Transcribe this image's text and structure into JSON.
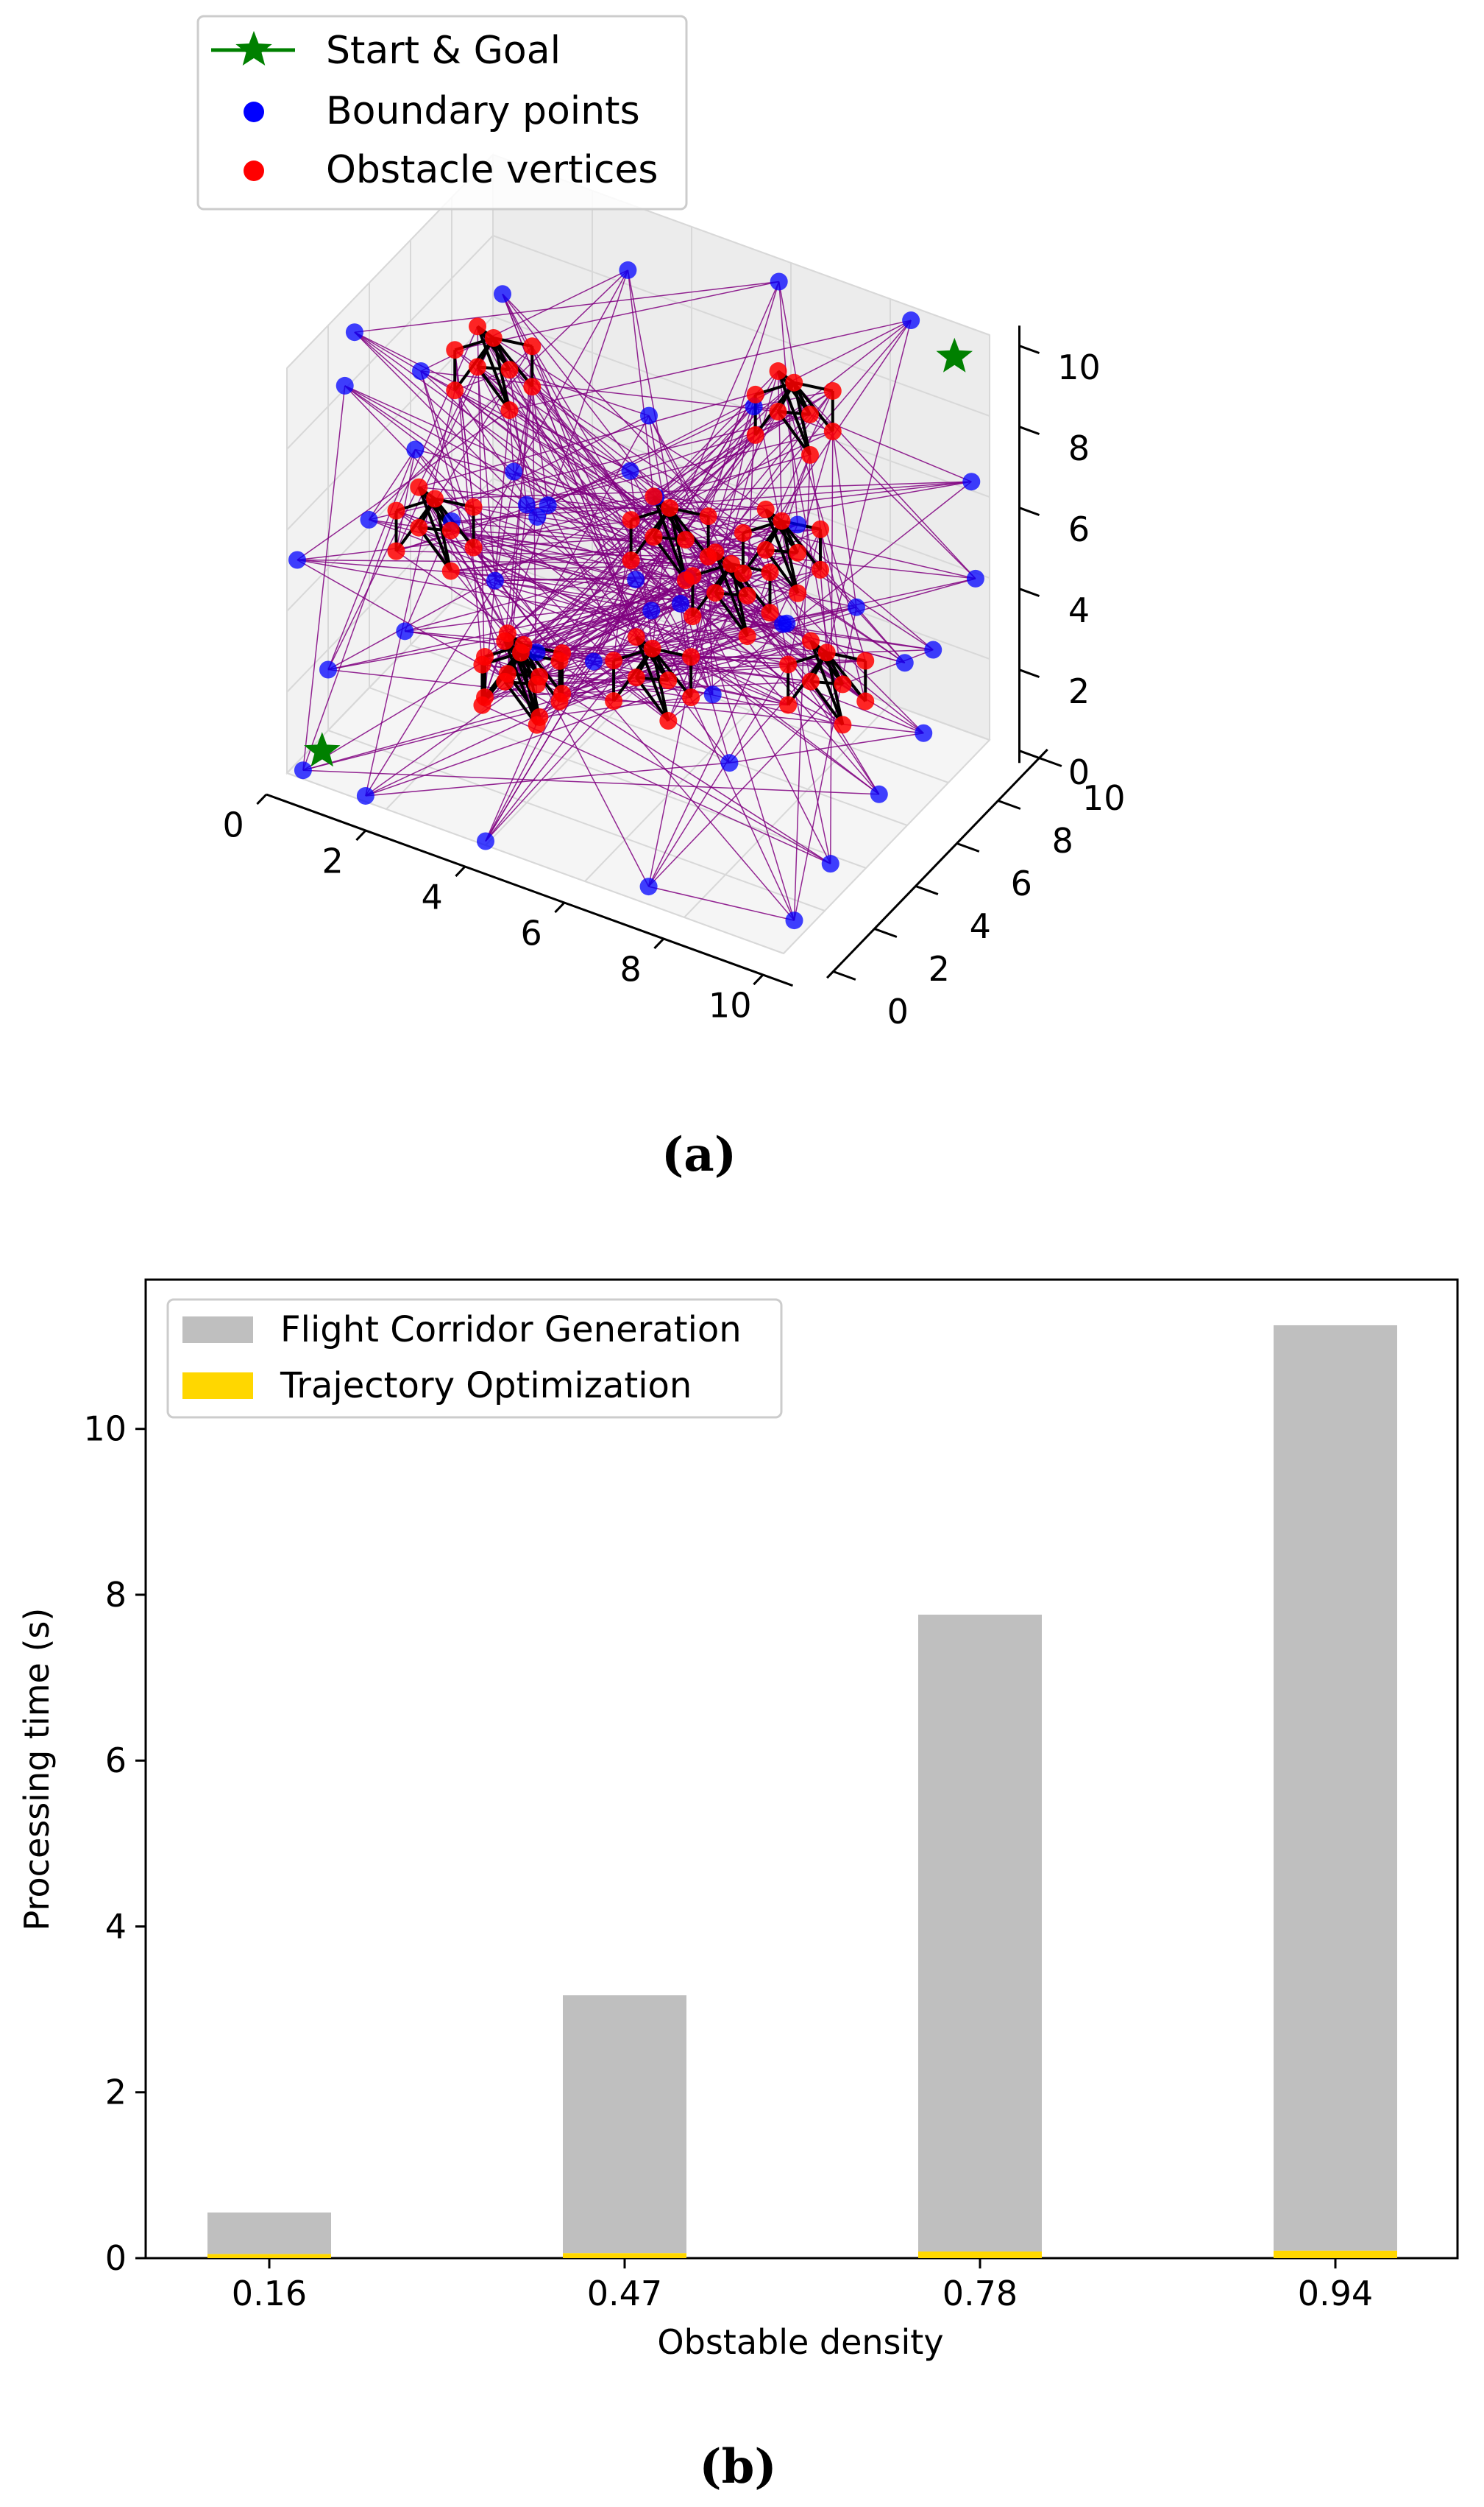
{
  "chart_data": [
    {
      "type": "scatter",
      "projection": "3d",
      "caption": "(a)",
      "xlim": [
        0,
        10
      ],
      "ylim": [
        0,
        10
      ],
      "zlim": [
        0,
        10
      ],
      "x_ticks": [
        "0",
        "2",
        "4",
        "6",
        "8",
        "10"
      ],
      "y_ticks": [
        "0",
        "2",
        "4",
        "6",
        "8",
        "10"
      ],
      "z_ticks": [
        "0",
        "2",
        "4",
        "6",
        "8",
        "10"
      ],
      "legend": {
        "placement": "upper-left",
        "entries": [
          {
            "label": "Start & Goal",
            "color": "#008000",
            "marker": "star-line"
          },
          {
            "label": "Boundary points",
            "color": "#0000ff",
            "marker": "dot"
          },
          {
            "label": "Obstacle vertices",
            "color": "#ff0000",
            "marker": "dot"
          }
        ]
      },
      "start_goal": [
        {
          "x": 0.5,
          "y": 0.5,
          "z": 0.5
        },
        {
          "x": 9.5,
          "y": 9.5,
          "z": 9.5
        }
      ],
      "boundary_points": [
        [
          0.2,
          0.3,
          0.0
        ],
        [
          1.5,
          0.2,
          0.0
        ],
        [
          4.0,
          0.0,
          0.1
        ],
        [
          7.2,
          0.2,
          0.3
        ],
        [
          9.8,
          1.0,
          0.2
        ],
        [
          9.7,
          3.0,
          0.5
        ],
        [
          9.6,
          5.6,
          0.8
        ],
        [
          9.5,
          8.0,
          1.0
        ],
        [
          0.0,
          2.0,
          1.5
        ],
        [
          0.3,
          5.0,
          1.0
        ],
        [
          0.0,
          8.0,
          2.0
        ],
        [
          0.5,
          9.8,
          2.5
        ],
        [
          3.0,
          9.7,
          1.0
        ],
        [
          6.0,
          9.8,
          1.2
        ],
        [
          8.5,
          9.5,
          1.5
        ],
        [
          9.8,
          9.8,
          4.0
        ],
        [
          0.0,
          0.5,
          5.0
        ],
        [
          0.2,
          3.5,
          4.5
        ],
        [
          0.0,
          6.5,
          6.5
        ],
        [
          0.4,
          9.5,
          7.0
        ],
        [
          2.8,
          9.8,
          8.5
        ],
        [
          5.8,
          9.9,
          9.5
        ],
        [
          8.5,
          9.8,
          9.8
        ],
        [
          9.8,
          9.6,
          6.5
        ],
        [
          9.9,
          7.5,
          3.5
        ],
        [
          9.6,
          4.5,
          6.0
        ],
        [
          2.5,
          0.2,
          9.0
        ],
        [
          5.0,
          0.1,
          8.5
        ],
        [
          7.8,
          0.3,
          7.5
        ],
        [
          1.0,
          0.4,
          9.8
        ],
        [
          0.2,
          2.8,
          9.5
        ],
        [
          4.6,
          3.8,
          2.8
        ],
        [
          5.5,
          6.2,
          4.0
        ],
        [
          6.5,
          5.0,
          2.2
        ],
        [
          3.5,
          3.2,
          6.5
        ],
        [
          4.8,
          6.0,
          7.8
        ],
        [
          7.0,
          7.2,
          3.0
        ],
        [
          2.2,
          4.8,
          3.2
        ],
        [
          6.3,
          2.5,
          5.5
        ],
        [
          8.0,
          5.5,
          6.8
        ],
        [
          3.8,
          7.5,
          5.2
        ],
        [
          5.6,
          4.4,
          7.0
        ],
        [
          7.5,
          3.4,
          1.8
        ],
        [
          2.6,
          6.4,
          4.4
        ],
        [
          6.0,
          8.2,
          7.4
        ],
        [
          4.2,
          2.0,
          3.8
        ]
      ],
      "obstacles": [
        {
          "center": [
            3.3,
            3.4,
            1.9
          ]
        },
        {
          "center": [
            5.2,
            5.2,
            1.9
          ]
        },
        {
          "center": [
            7.8,
            7.4,
            1.8
          ]
        },
        {
          "center": [
            1.9,
            2.6,
            5.5
          ]
        },
        {
          "center": [
            5.3,
            5.8,
            5.1
          ]
        },
        {
          "center": [
            7.1,
            6.9,
            5.0
          ]
        },
        {
          "center": [
            2.5,
            4.0,
            9.0
          ]
        },
        {
          "center": [
            7.1,
            7.5,
            8.1
          ]
        },
        {
          "center": [
            4.1,
            1.6,
            3.4
          ]
        },
        {
          "center": [
            6.5,
            5.9,
            4.2
          ]
        }
      ],
      "edge_color": "#800080",
      "obstacle_edge_color": "#000000"
    },
    {
      "type": "bar",
      "stacked": true,
      "caption": "(b)",
      "categories": [
        "0.16",
        "0.47",
        "0.78",
        "0.94"
      ],
      "xlabel": "Obstable density",
      "ylabel": "Processing time (s)",
      "ylim": [
        0,
        11.8
      ],
      "y_ticks": [
        0,
        2,
        4,
        6,
        8,
        10
      ],
      "legend_placement": "upper-left",
      "series": [
        {
          "name": "Trajectory Optimization",
          "color": "#ffd700",
          "values": [
            0.05,
            0.06,
            0.08,
            0.09
          ]
        },
        {
          "name": "Flight Corridor Generation",
          "color": "#bfbfbf",
          "values": [
            0.5,
            3.11,
            7.68,
            11.16
          ]
        }
      ],
      "legend_order": [
        "Flight Corridor Generation",
        "Trajectory Optimization"
      ]
    }
  ]
}
